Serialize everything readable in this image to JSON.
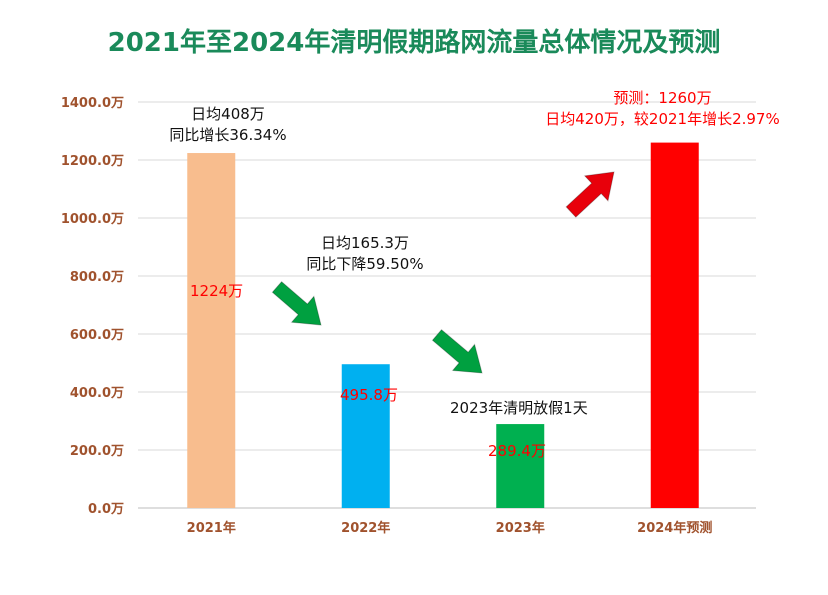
{
  "chart_data": {
    "type": "bar",
    "title": "2021年至2024年清明假期路网流量总体情况及预测",
    "categories": [
      "2021年",
      "2022年",
      "2023年",
      "2024年预测"
    ],
    "values": [
      1224,
      495.8,
      289.4,
      1260
    ],
    "colors": [
      "#f8bd8e",
      "#00b0f0",
      "#00b050",
      "#ff0000"
    ],
    "ylim": [
      0,
      1400
    ],
    "yticks": [
      "0.0万",
      "200.0万",
      "400.0万",
      "600.0万",
      "800.0万",
      "1000.0万",
      "1200.0万",
      "1400.0万"
    ],
    "ytick_values": [
      0,
      200,
      400,
      600,
      800,
      1000,
      1200,
      1400
    ],
    "grid": true,
    "data_labels": [
      "1224万",
      "495.8万",
      "289.4万",
      ""
    ],
    "annotations": {
      "a2021_line1": "日均408万",
      "a2021_line2": "同比增长36.34%",
      "a2022_line1": "日均165.3万",
      "a2022_line2": "同比下降59.50%",
      "a2023": "2023年清明放假1天",
      "a2024_line1": "预测：1260万",
      "a2024_line2": "日均420万，较2021年增长2.97%"
    },
    "arrow_colors": {
      "down": "#00a040",
      "up": "#e8000b"
    },
    "tick_color": "#a0522d"
  }
}
